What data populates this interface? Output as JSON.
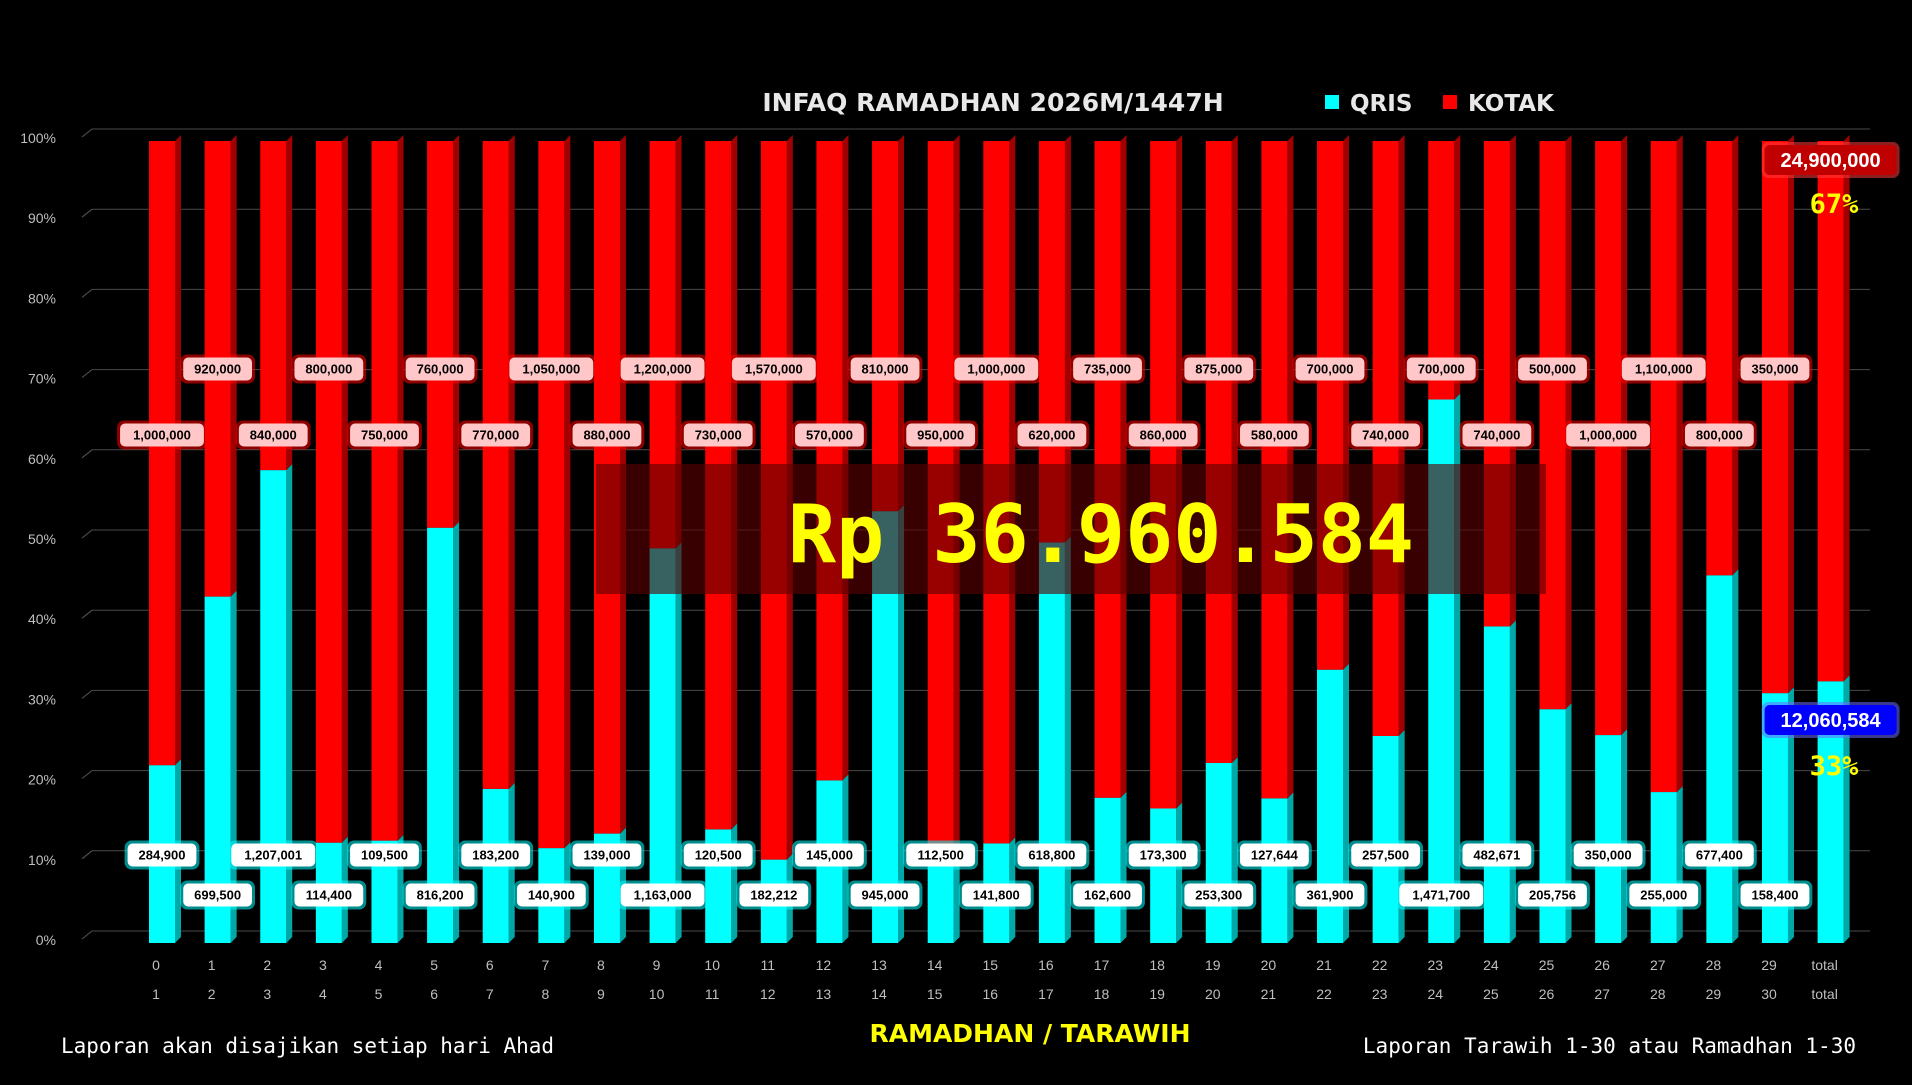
{
  "chart_data": {
    "type": "bar",
    "stacked": "percent",
    "title": "INFAQ RAMADHAN 2026M/1447H",
    "xlabel": "RAMADHAN / TARAWIH",
    "ylabel": "",
    "ylim": [
      0,
      100
    ],
    "y_ticks": [
      "0%",
      "10%",
      "20%",
      "30%",
      "40%",
      "50%",
      "60%",
      "70%",
      "80%",
      "90%",
      "100%"
    ],
    "grid": true,
    "legend_position": "top",
    "categories_row1": [
      "0",
      "1",
      "2",
      "3",
      "4",
      "5",
      "6",
      "7",
      "8",
      "9",
      "10",
      "11",
      "12",
      "13",
      "14",
      "15",
      "16",
      "17",
      "18",
      "19",
      "20",
      "21",
      "22",
      "23",
      "24",
      "25",
      "26",
      "27",
      "28",
      "29",
      "total"
    ],
    "categories_row2": [
      "1",
      "2",
      "3",
      "4",
      "5",
      "6",
      "7",
      "8",
      "9",
      "10",
      "11",
      "12",
      "13",
      "14",
      "15",
      "16",
      "17",
      "18",
      "19",
      "20",
      "21",
      "22",
      "23",
      "24",
      "25",
      "26",
      "27",
      "28",
      "29",
      "30",
      "total"
    ],
    "series": [
      {
        "name": "QRIS",
        "color": "#00ffff",
        "values": [
          284900,
          699500,
          1207001,
          114400,
          109500,
          816200,
          183200,
          140900,
          139000,
          1163000,
          120500,
          182212,
          145000,
          945000,
          112500,
          141800,
          618800,
          162600,
          173300,
          253300,
          127644,
          361900,
          257500,
          1471700,
          482671,
          205756,
          350000,
          255000,
          677400,
          158400,
          12060584
        ],
        "labels": [
          "284,900",
          "699,500",
          "1,207,001",
          "114,400",
          "109,500",
          "816,200",
          "183,200",
          "140,900",
          "139,000",
          "1,163,000",
          "120,500",
          "182,212",
          "145,000",
          "945,000",
          "112,500",
          "141,800",
          "618,800",
          "162,600",
          "173,300",
          "253,300",
          "127,644",
          "361,900",
          "257,500",
          "1,471,700",
          "482,671",
          "205,756",
          "350,000",
          "255,000",
          "677,400",
          "158,400",
          "12,060,584"
        ]
      },
      {
        "name": "KOTAK",
        "color": "#ff0000",
        "values": [
          1000000,
          920000,
          840000,
          800000,
          750000,
          760000,
          770000,
          1050000,
          880000,
          1200000,
          730000,
          1570000,
          570000,
          810000,
          950000,
          1000000,
          620000,
          735000,
          860000,
          875000,
          580000,
          700000,
          740000,
          700000,
          740000,
          500000,
          1000000,
          1100000,
          800000,
          350000,
          24900000
        ],
        "labels": [
          "1,000,000",
          "920,000",
          "840,000",
          "800,000",
          "750,000",
          "760,000",
          "770,000",
          "1,050,000",
          "880,000",
          "1,200,000",
          "730,000",
          "1,570,000",
          "570,000",
          "810,000",
          "950,000",
          "1,000,000",
          "620,000",
          "735,000",
          "860,000",
          "875,000",
          "580,000",
          "700,000",
          "740,000",
          "700,000",
          "740,000",
          "500,000",
          "1,000,000",
          "1,100,000",
          "800,000",
          "350,000",
          "24,900,000"
        ]
      }
    ],
    "total_share": {
      "QRIS": "33%",
      "KOTAK": "67%"
    },
    "grand_total": "Rp 36.960.584"
  },
  "footer": {
    "left": "Laporan akan disajikan setiap hari Ahad",
    "right": "Laporan Tarawih 1-30 atau Ramadhan 1-30"
  },
  "colors": {
    "background": "#000000",
    "qris": "#00ffff",
    "kotak": "#ff0000",
    "total_box_kotak": "#c00000",
    "total_box_qris": "#0000ff",
    "highlight_text": "#ffff00"
  }
}
